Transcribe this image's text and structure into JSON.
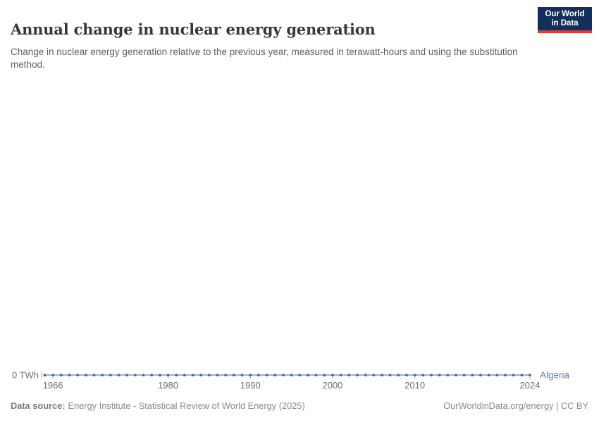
{
  "header": {
    "title": "Annual change in nuclear energy generation",
    "subtitle": "Change in nuclear energy generation relative to the previous year, measured in terawatt-hours and using the substitution method.",
    "logo": {
      "line1": "Our World",
      "line2": "in Data"
    }
  },
  "footer": {
    "source_label": "Data source:",
    "source_text": "Energy Institute - Statistical Review of World Energy (2025)",
    "attribution": "OurWorldinData.org/energy | CC BY"
  },
  "chart_data": {
    "type": "line",
    "title": "Annual change in nuclear energy generation",
    "xlabel": "",
    "ylabel": "TWh",
    "grid": false,
    "legend_position": "end-of-line",
    "x": [
      1965,
      1966,
      1967,
      1968,
      1969,
      1970,
      1971,
      1972,
      1973,
      1974,
      1975,
      1976,
      1977,
      1978,
      1979,
      1980,
      1981,
      1982,
      1983,
      1984,
      1985,
      1986,
      1987,
      1988,
      1989,
      1990,
      1991,
      1992,
      1993,
      1994,
      1995,
      1996,
      1997,
      1998,
      1999,
      2000,
      2001,
      2002,
      2003,
      2004,
      2005,
      2006,
      2007,
      2008,
      2009,
      2010,
      2011,
      2012,
      2013,
      2014,
      2015,
      2016,
      2017,
      2018,
      2019,
      2020,
      2021,
      2022,
      2023,
      2024
    ],
    "series": [
      {
        "name": "Algeria",
        "values": [
          0,
          0,
          0,
          0,
          0,
          0,
          0,
          0,
          0,
          0,
          0,
          0,
          0,
          0,
          0,
          0,
          0,
          0,
          0,
          0,
          0,
          0,
          0,
          0,
          0,
          0,
          0,
          0,
          0,
          0,
          0,
          0,
          0,
          0,
          0,
          0,
          0,
          0,
          0,
          0,
          0,
          0,
          0,
          0,
          0,
          0,
          0,
          0,
          0,
          0,
          0,
          0,
          0,
          0,
          0,
          0,
          0,
          0,
          0,
          0
        ]
      }
    ],
    "x_ticks": [
      1966,
      1980,
      1990,
      2000,
      2010,
      2024
    ],
    "y_tick_label": "0 TWh",
    "y_tick_value": 0,
    "ylim": [
      0,
      0
    ]
  },
  "colors": {
    "line": "#9db3d6",
    "marker": "#4a669c",
    "entity_label": "#6781b1",
    "axis_text": "#6e6e6e",
    "tick": "#a5adb8",
    "logo_bg": "#12305b",
    "logo_red": "#dc3d33"
  }
}
